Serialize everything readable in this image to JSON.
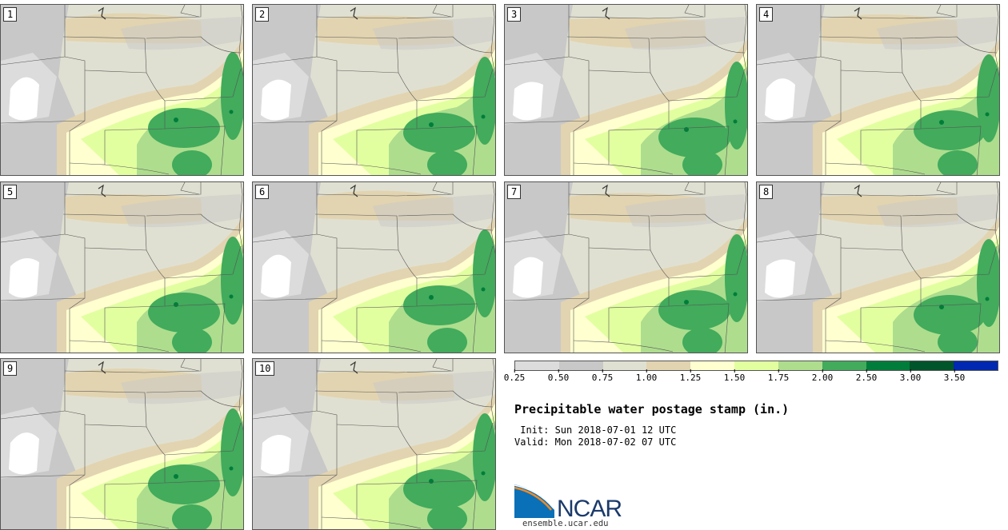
{
  "members": [
    "1",
    "2",
    "3",
    "4",
    "5",
    "6",
    "7",
    "8",
    "9",
    "10"
  ],
  "colorbar": {
    "colors": [
      "#dcdcdc",
      "#c8c8c8",
      "#e0e0d2",
      "#e2d4b0",
      "#ffffd0",
      "#e2ffa0",
      "#aedd8e",
      "#42ab5c",
      "#007d3a",
      "#00552a",
      "#0028b0"
    ],
    "ticks": [
      "0.25",
      "0.50",
      "0.75",
      "1.00",
      "1.25",
      "1.50",
      "1.75",
      "2.00",
      "2.50",
      "3.00",
      "3.50"
    ]
  },
  "title": "Precipitable water postage stamp (in.)",
  "init": " Init: Sun 2018-07-01 12 UTC",
  "valid": "Valid: Mon 2018-07-02 07 UTC",
  "logo": {
    "text": "NCAR",
    "colors": {
      "blue": "#0a70b8",
      "navy": "#1b3a6b",
      "orange": "#f08a24"
    }
  },
  "url": "ensemble.ucar.edu"
}
